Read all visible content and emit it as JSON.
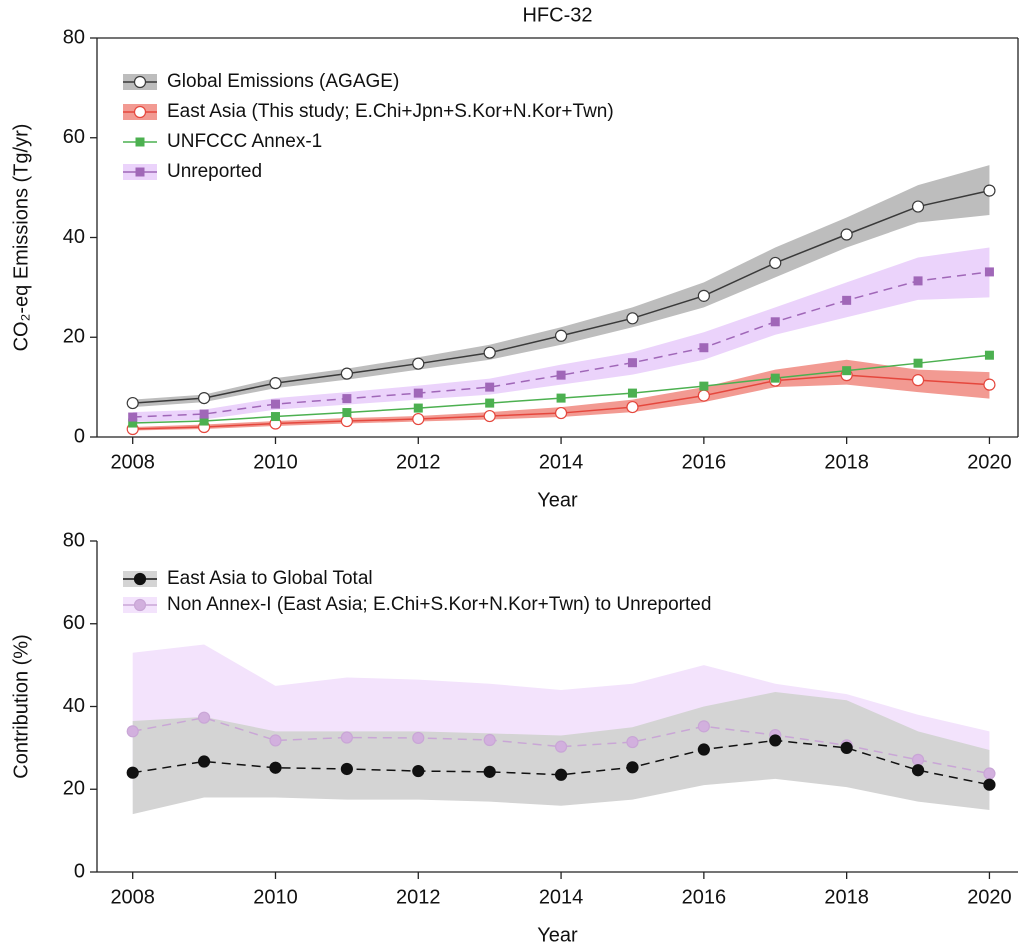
{
  "chart_data": [
    {
      "type": "line",
      "title": "HFC-32",
      "xlabel": "Year",
      "ylabel": "CO₂-eq Emissions (Tg/yr)",
      "x": [
        2008,
        2009,
        2010,
        2011,
        2012,
        2013,
        2014,
        2015,
        2016,
        2017,
        2018,
        2019,
        2020
      ],
      "xlim": [
        2007.5,
        2020.4
      ],
      "xticks": [
        2008,
        2010,
        2012,
        2014,
        2016,
        2018,
        2020
      ],
      "ylim": [
        0,
        80
      ],
      "yticks": [
        0,
        20,
        40,
        60,
        80
      ],
      "frame": "box",
      "legend": "upper left",
      "series": [
        {
          "name": "Global Emissions (AGAGE)",
          "color": "#3a3a3a",
          "band_color": "#bdbdbd",
          "marker": "circle",
          "marker_fill": "#ffffff",
          "dash": false,
          "values": [
            6.8,
            7.8,
            10.8,
            12.7,
            14.7,
            16.9,
            20.3,
            23.8,
            28.3,
            34.9,
            40.6,
            46.2,
            49.4
          ],
          "lower": [
            6.0,
            7.0,
            9.8,
            11.5,
            13.5,
            15.5,
            18.5,
            22.0,
            26.0,
            32.0,
            38.0,
            43.0,
            44.5
          ],
          "upper": [
            7.5,
            8.5,
            11.8,
            13.7,
            16.0,
            18.5,
            22.0,
            26.0,
            31.0,
            38.0,
            44.0,
            50.5,
            54.5
          ]
        },
        {
          "name": "East Asia (This study; E.Chi+Jpn+S.Kor+N.Kor+Twn)",
          "color": "#e5473d",
          "band_color": "#f29a92",
          "marker": "circle",
          "marker_fill": "#ffffff",
          "dash": false,
          "values": [
            1.6,
            2.0,
            2.7,
            3.2,
            3.6,
            4.2,
            4.8,
            6.0,
            8.3,
            11.3,
            12.4,
            11.4,
            10.5
          ],
          "lower": [
            1.3,
            1.6,
            2.2,
            2.7,
            3.1,
            3.5,
            4.0,
            5.0,
            7.0,
            10.0,
            10.5,
            9.0,
            7.7
          ],
          "upper": [
            2.0,
            2.5,
            3.2,
            3.8,
            4.2,
            5.0,
            6.0,
            7.5,
            10.0,
            13.5,
            15.5,
            13.5,
            13.0
          ]
        },
        {
          "name": "UNFCCC Annex-1",
          "color": "#4cb050",
          "marker": "square",
          "marker_fill": "#4cb050",
          "dash": false,
          "values": [
            2.8,
            3.2,
            4.1,
            4.9,
            5.8,
            6.8,
            7.8,
            8.8,
            10.2,
            11.8,
            13.3,
            14.8,
            16.4
          ]
        },
        {
          "name": "Unreported",
          "color": "#a067b8",
          "band_color": "#ebd3fb",
          "marker": "square",
          "marker_fill": "#a067b8",
          "dash": true,
          "values": [
            4.0,
            4.6,
            6.6,
            7.7,
            8.8,
            10.0,
            12.4,
            14.9,
            17.9,
            23.1,
            27.4,
            31.3,
            33.1
          ],
          "lower": [
            3.0,
            3.5,
            5.5,
            6.5,
            7.5,
            8.5,
            10.5,
            12.5,
            15.5,
            20.5,
            24.0,
            27.5,
            28.0
          ],
          "upper": [
            5.0,
            5.5,
            7.8,
            9.0,
            10.3,
            11.7,
            14.5,
            17.0,
            21.0,
            26.0,
            31.0,
            36.0,
            38.0
          ]
        }
      ]
    },
    {
      "type": "line",
      "xlabel": "Year",
      "ylabel": "Contribution (%)",
      "x": [
        2008,
        2009,
        2010,
        2011,
        2012,
        2013,
        2014,
        2015,
        2016,
        2017,
        2018,
        2019,
        2020
      ],
      "xlim": [
        2007.5,
        2020.4
      ],
      "xticks": [
        2008,
        2010,
        2012,
        2014,
        2016,
        2018,
        2020
      ],
      "ylim": [
        0,
        80
      ],
      "yticks": [
        0,
        20,
        40,
        60,
        80
      ],
      "frame": "open",
      "legend": "upper left",
      "series": [
        {
          "name": "Non Annex-I (East Asia; E.Chi+S.Kor+N.Kor+Twn) to Unreported",
          "color": "#c9a6d6",
          "band_color": "#f3e3fc",
          "marker": "circle",
          "marker_fill": "#d2b0de",
          "dash": true,
          "values": [
            34.0,
            37.3,
            31.8,
            32.5,
            32.4,
            31.9,
            30.3,
            31.4,
            35.2,
            33.1,
            30.6,
            27.1,
            23.8
          ],
          "lower": [
            20.0,
            24.5,
            24.0,
            23.5,
            23.0,
            23.0,
            22.0,
            23.5,
            25.0,
            25.0,
            24.0,
            20.0,
            17.0
          ],
          "upper": [
            53.0,
            55.0,
            45.0,
            47.0,
            46.5,
            45.5,
            44.0,
            45.5,
            50.0,
            45.5,
            43.0,
            38.0,
            34.0
          ]
        },
        {
          "name": "East Asia to Global Total",
          "color": "#111111",
          "band_color": "#d4d4d4",
          "marker": "circle",
          "marker_fill": "#111111",
          "dash": true,
          "values": [
            24.0,
            26.7,
            25.2,
            24.9,
            24.4,
            24.2,
            23.5,
            25.3,
            29.6,
            31.8,
            30.0,
            24.6,
            21.1
          ],
          "lower": [
            14.0,
            18.0,
            18.0,
            17.5,
            17.5,
            17.0,
            16.0,
            17.5,
            21.0,
            22.5,
            20.5,
            17.0,
            15.0
          ],
          "upper": [
            36.5,
            37.5,
            34.0,
            34.0,
            34.0,
            33.5,
            33.0,
            35.0,
            40.0,
            43.5,
            41.5,
            34.0,
            29.5
          ]
        }
      ]
    }
  ]
}
